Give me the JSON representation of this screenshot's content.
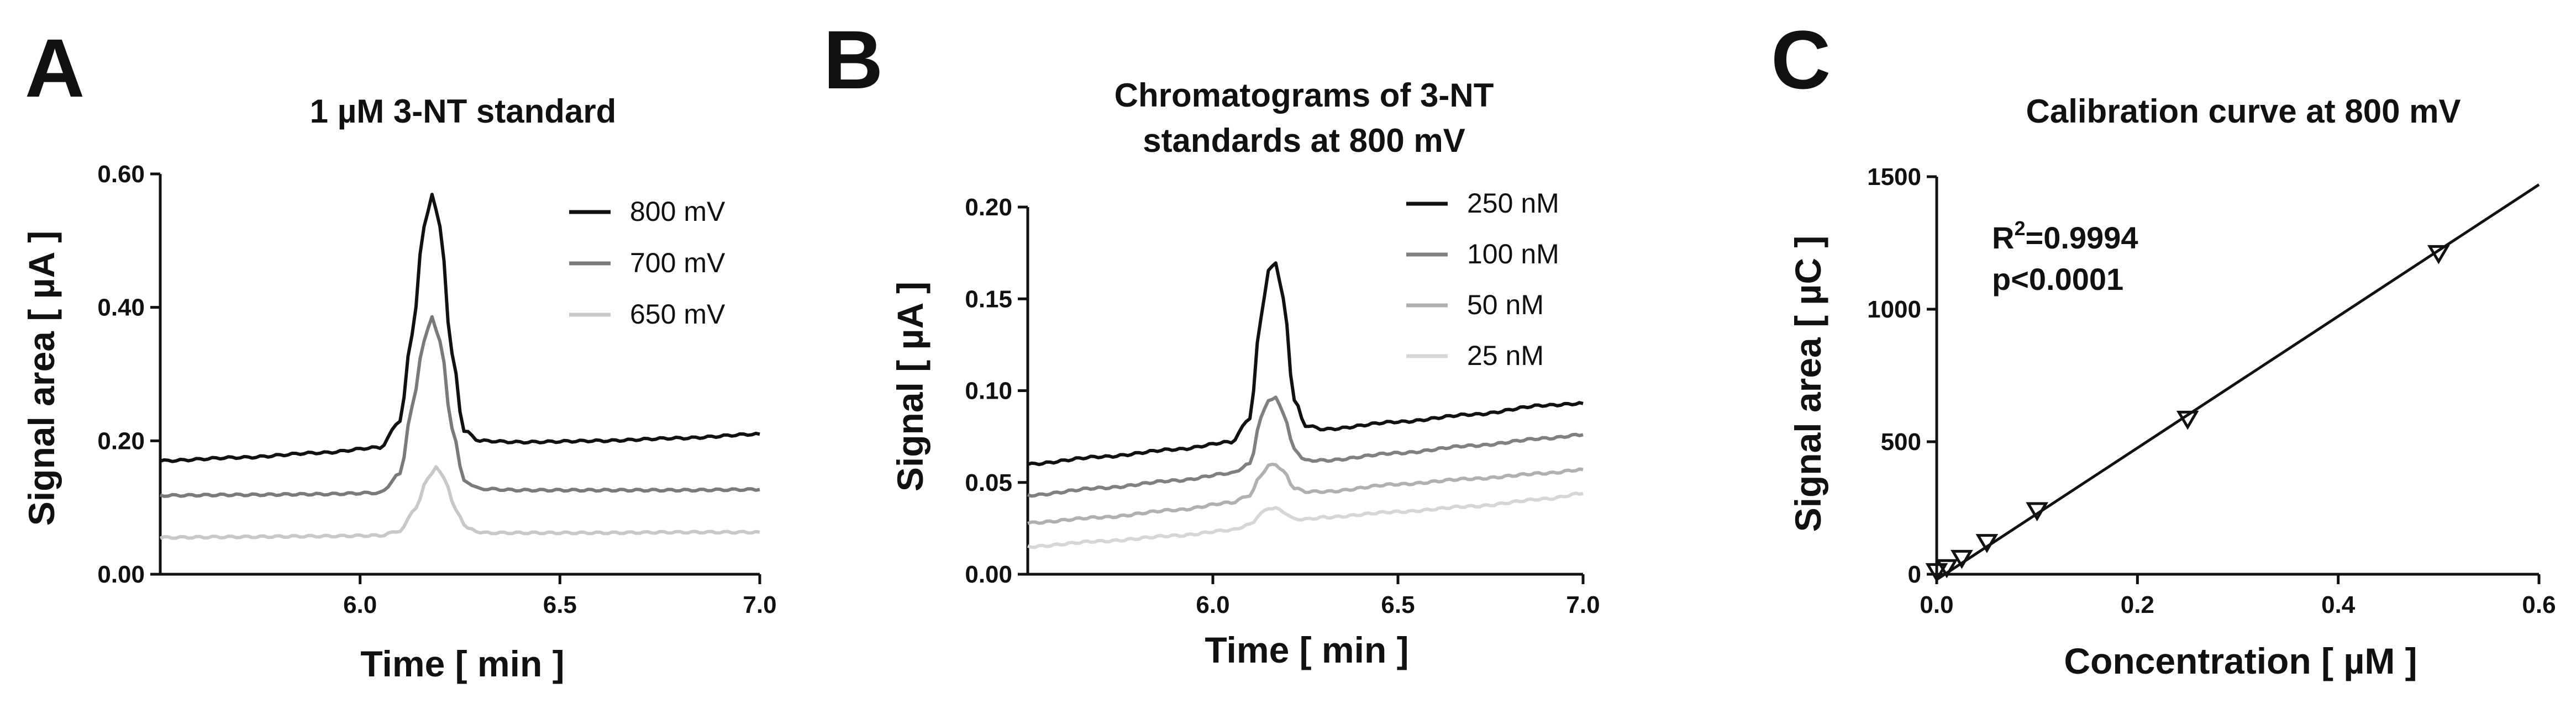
{
  "chart_data": [
    {
      "type": "line",
      "panel_label": "A",
      "title": "1 µM 3-NT standard",
      "xlabel": "Time [ min ]",
      "ylabel": "Signal area [ µA ]",
      "xlim": [
        5.5,
        7.0
      ],
      "ylim": [
        0,
        0.6
      ],
      "xticks": [
        6.0,
        6.5,
        7.0
      ],
      "xtick_labels": [
        "6.0",
        "6.5",
        "7.0"
      ],
      "yticks": [
        0.0,
        0.2,
        0.4,
        0.6
      ],
      "ytick_labels": [
        "0.00",
        "0.20",
        "0.40",
        "0.60"
      ],
      "grid": false,
      "legend_position": "top-right",
      "series": [
        {
          "name": "800 mV",
          "color": "#111111",
          "x": [
            5.5,
            5.7,
            5.9,
            6.05,
            6.1,
            6.13,
            6.16,
            6.18,
            6.2,
            6.23,
            6.26,
            6.3,
            6.4,
            6.6,
            6.8,
            7.0
          ],
          "y": [
            0.17,
            0.175,
            0.182,
            0.19,
            0.23,
            0.36,
            0.52,
            0.57,
            0.52,
            0.33,
            0.215,
            0.2,
            0.198,
            0.2,
            0.204,
            0.21
          ]
        },
        {
          "name": "700 mV",
          "color": "#7a7a7a",
          "x": [
            5.5,
            5.7,
            5.9,
            6.05,
            6.1,
            6.13,
            6.16,
            6.18,
            6.2,
            6.23,
            6.26,
            6.3,
            6.4,
            6.6,
            6.8,
            7.0
          ],
          "y": [
            0.118,
            0.119,
            0.12,
            0.122,
            0.15,
            0.25,
            0.35,
            0.385,
            0.35,
            0.22,
            0.14,
            0.128,
            0.126,
            0.126,
            0.126,
            0.127
          ]
        },
        {
          "name": "650 mV",
          "color": "#c8c8c8",
          "x": [
            5.5,
            5.7,
            5.9,
            6.05,
            6.1,
            6.14,
            6.17,
            6.19,
            6.21,
            6.24,
            6.27,
            6.31,
            6.4,
            6.6,
            6.8,
            7.0
          ],
          "y": [
            0.055,
            0.056,
            0.057,
            0.058,
            0.065,
            0.1,
            0.145,
            0.16,
            0.145,
            0.095,
            0.068,
            0.062,
            0.062,
            0.062,
            0.063,
            0.063
          ]
        }
      ]
    },
    {
      "type": "line",
      "panel_label": "B",
      "title": "Chromatograms of 3-NT standards at 800 mV",
      "title_lines": [
        "Chromatograms of 3-NT",
        "standards at 800 mV"
      ],
      "xlabel": "Time [ min ]",
      "ylabel": "Signal [ µA ]",
      "xlim": [
        5.5,
        7.0
      ],
      "ylim": [
        0,
        0.2
      ],
      "xticks": [
        6.0,
        6.5,
        7.0
      ],
      "xtick_labels": [
        "6.0",
        "6.5",
        "7.0"
      ],
      "yticks": [
        0.0,
        0.05,
        0.1,
        0.15,
        0.2
      ],
      "ytick_labels": [
        "0.00",
        "0.05",
        "0.10",
        "0.15",
        "0.20"
      ],
      "grid": false,
      "legend_position": "top-right",
      "series": [
        {
          "name": "250 nM",
          "color": "#111111",
          "x": [
            5.5,
            5.7,
            5.9,
            6.05,
            6.1,
            6.13,
            6.15,
            6.17,
            6.19,
            6.22,
            6.25,
            6.3,
            6.5,
            6.7,
            6.9,
            7.0
          ],
          "y": [
            0.06,
            0.064,
            0.068,
            0.072,
            0.085,
            0.14,
            0.165,
            0.17,
            0.15,
            0.095,
            0.081,
            0.079,
            0.083,
            0.087,
            0.092,
            0.093
          ]
        },
        {
          "name": "100 nM",
          "color": "#808080",
          "x": [
            5.5,
            5.7,
            5.9,
            6.05,
            6.1,
            6.13,
            6.15,
            6.17,
            6.19,
            6.22,
            6.25,
            6.3,
            6.5,
            6.7,
            6.9,
            7.0
          ],
          "y": [
            0.043,
            0.047,
            0.051,
            0.055,
            0.06,
            0.085,
            0.095,
            0.096,
            0.088,
            0.068,
            0.062,
            0.062,
            0.066,
            0.07,
            0.074,
            0.076
          ]
        },
        {
          "name": "50 nM",
          "color": "#b0b0b0",
          "x": [
            5.5,
            5.7,
            5.9,
            6.05,
            6.1,
            6.13,
            6.15,
            6.17,
            6.19,
            6.22,
            6.25,
            6.3,
            6.5,
            6.7,
            6.9,
            7.0
          ],
          "y": [
            0.028,
            0.031,
            0.035,
            0.039,
            0.043,
            0.054,
            0.059,
            0.06,
            0.056,
            0.047,
            0.045,
            0.045,
            0.049,
            0.052,
            0.055,
            0.057
          ]
        },
        {
          "name": "25 nM",
          "color": "#d6d6d6",
          "x": [
            5.5,
            5.7,
            5.9,
            6.05,
            6.1,
            6.13,
            6.15,
            6.17,
            6.19,
            6.22,
            6.25,
            6.3,
            6.5,
            6.7,
            6.9,
            7.0
          ],
          "y": [
            0.015,
            0.018,
            0.021,
            0.024,
            0.027,
            0.033,
            0.036,
            0.036,
            0.034,
            0.03,
            0.03,
            0.031,
            0.034,
            0.037,
            0.041,
            0.044
          ]
        }
      ]
    },
    {
      "type": "scatter",
      "panel_label": "C",
      "title": "Calibration curve at 800 mV",
      "xlabel": "Concentration [ µM ]",
      "ylabel": "Signal area [ µC ]",
      "xlim": [
        0,
        0.6
      ],
      "ylim": [
        0,
        1500
      ],
      "xticks": [
        0,
        0.2,
        0.4,
        0.6
      ],
      "xtick_labels": [
        "0.0",
        "0.2",
        "0.4",
        "0.6"
      ],
      "yticks": [
        0,
        500,
        1000,
        1500
      ],
      "ytick_labels": [
        "0",
        "500",
        "1000",
        "1500"
      ],
      "grid": false,
      "marker": "triangle-down",
      "points": {
        "x": [
          0.0,
          0.01,
          0.025,
          0.05,
          0.1,
          0.25,
          0.5
        ],
        "y": [
          10,
          25,
          60,
          120,
          240,
          585,
          1210
        ]
      },
      "fit_line": {
        "x": [
          0.0,
          0.6
        ],
        "y": [
          -20,
          1470
        ]
      },
      "annotations": {
        "r2_prefix": "R",
        "r2_sup": "2",
        "r2_value": "=0.9994",
        "p_value": "p<0.0001"
      }
    }
  ]
}
